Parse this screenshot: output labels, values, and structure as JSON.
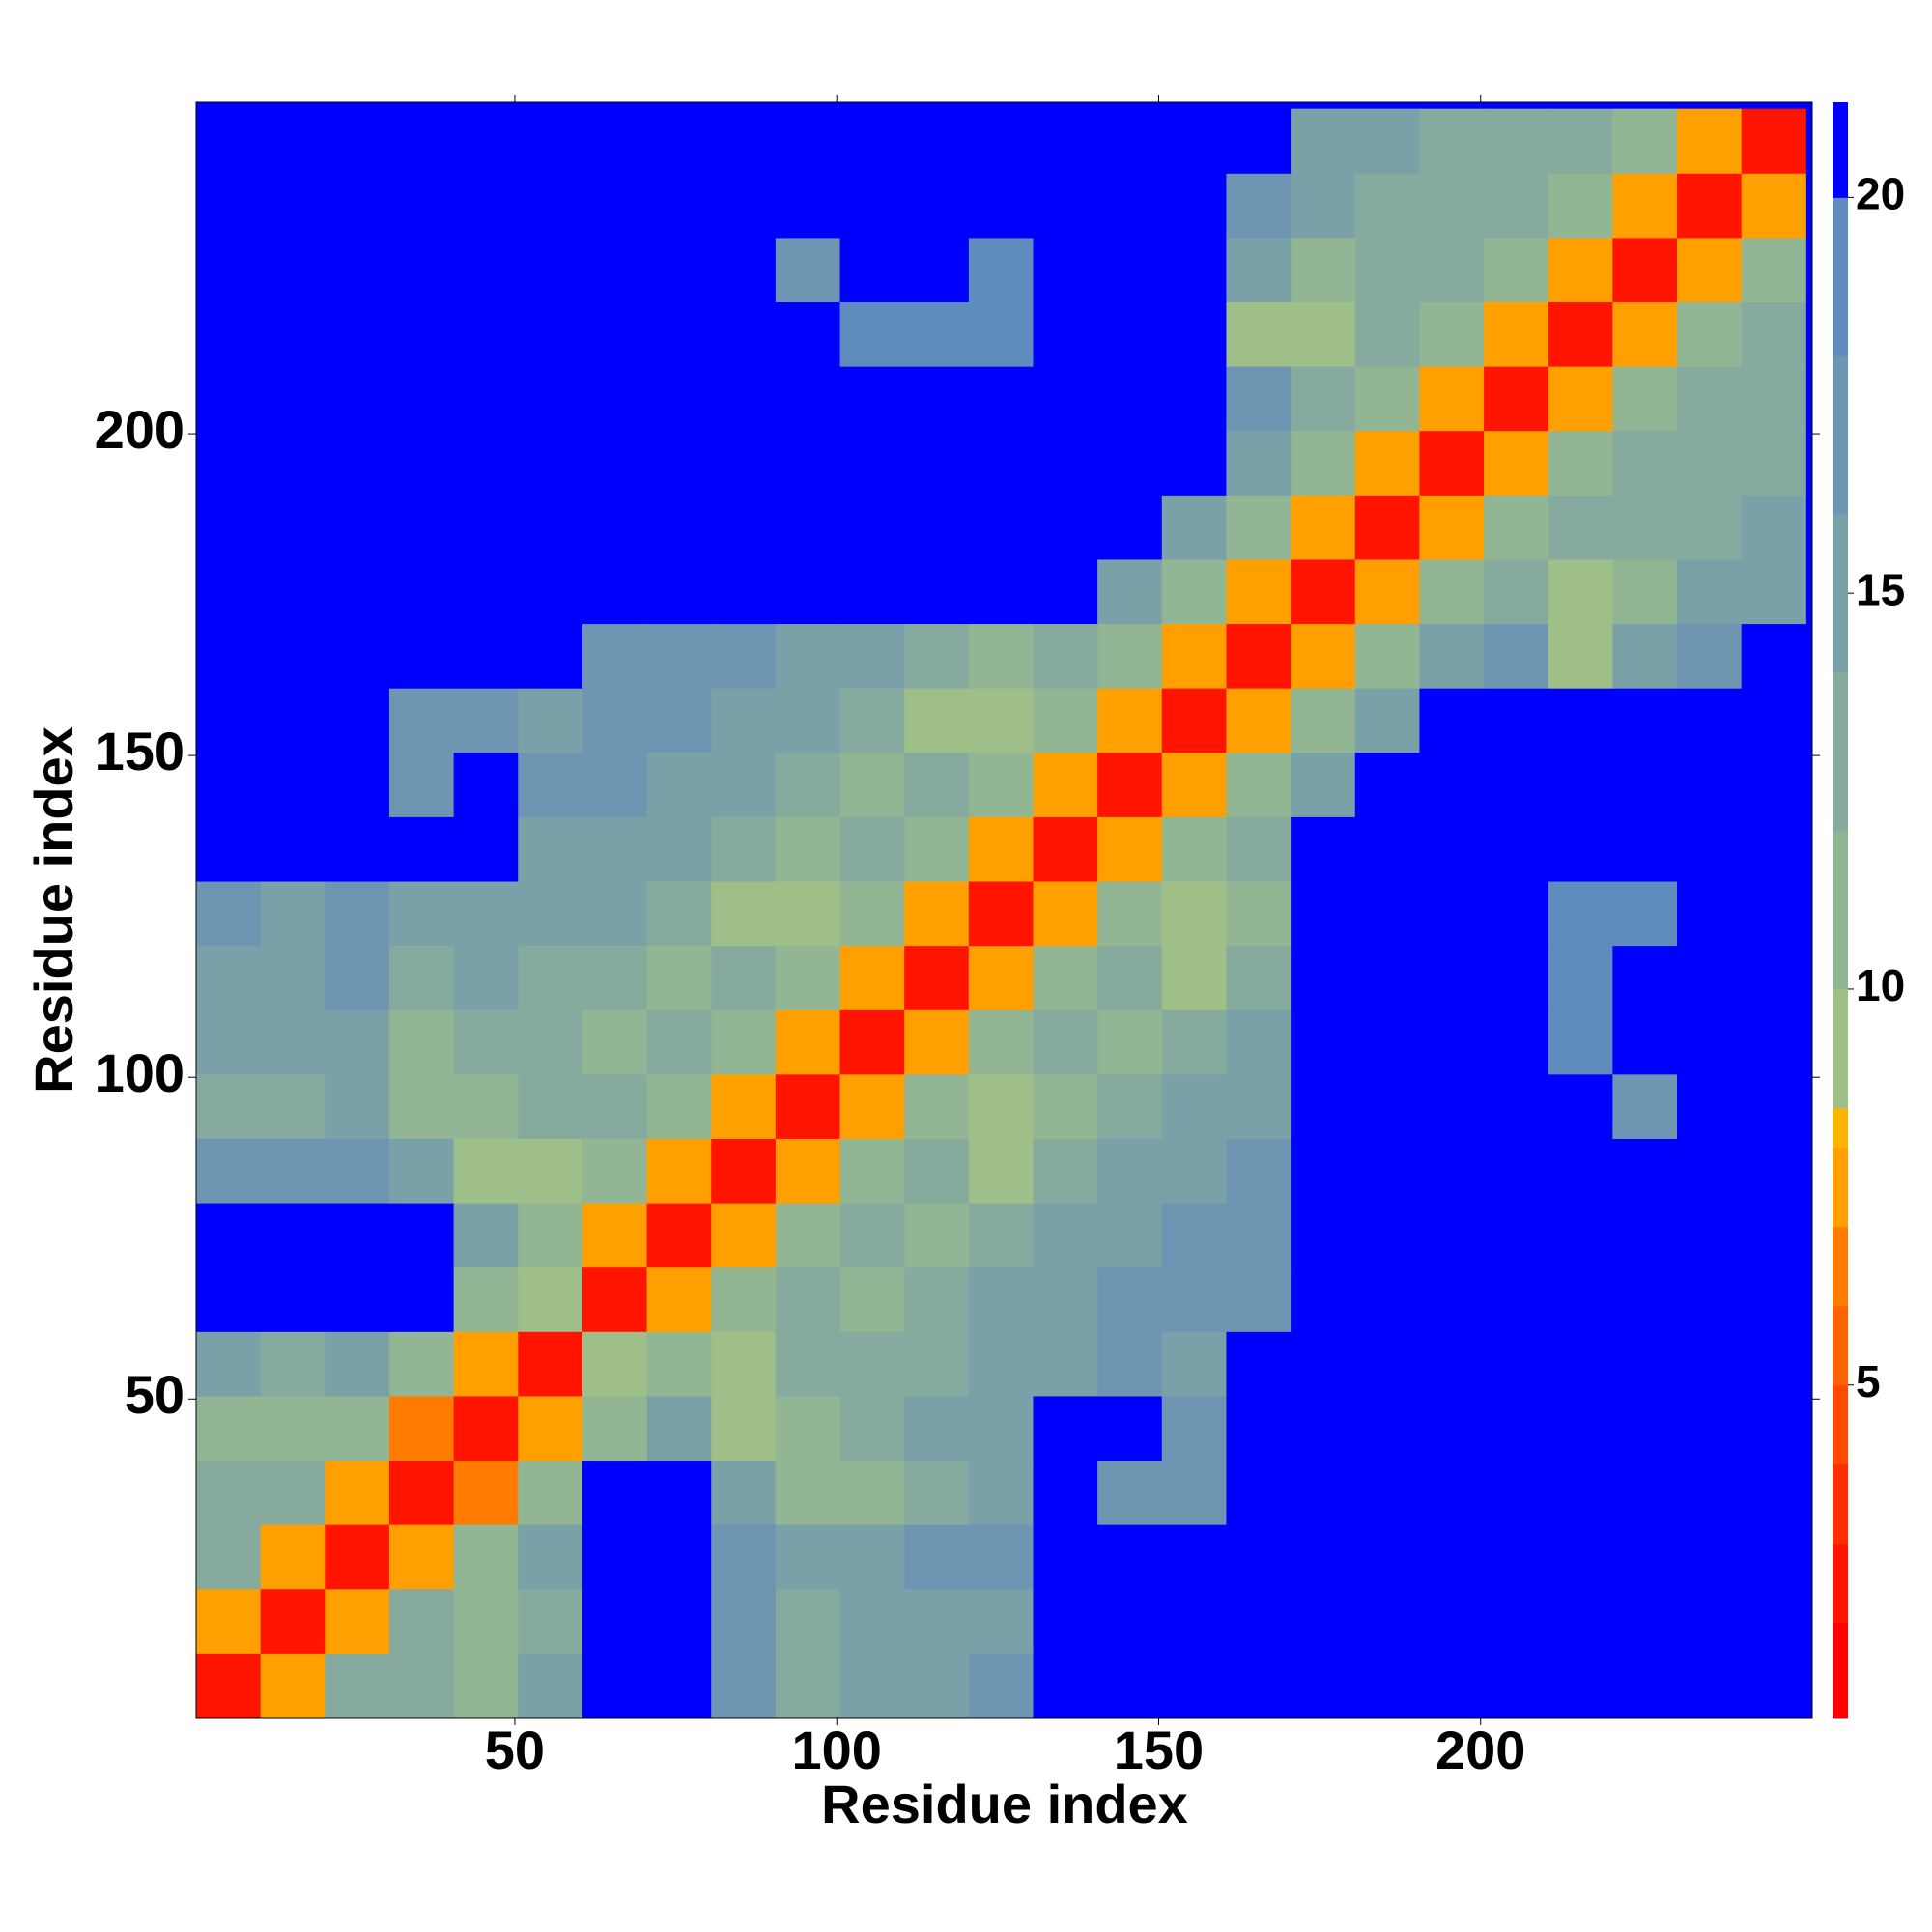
{
  "chart_data": {
    "type": "heatmap",
    "xlabel": "Residue index",
    "ylabel": "Residue index",
    "x": [
      5.5,
      15.5,
      25.5,
      35.5,
      45.5,
      55.5,
      65.5,
      75.5,
      85.5,
      95.5,
      105.5,
      115.5,
      125.5,
      135.5,
      145.5,
      155.5,
      165.5,
      175.5,
      185.5,
      195.5,
      205.5,
      215.5,
      225.5,
      235.5,
      245.5
    ],
    "y": [
      5.5,
      15.5,
      25.5,
      35.5,
      45.5,
      55.5,
      65.5,
      75.5,
      85.5,
      95.5,
      105.5,
      115.5,
      125.5,
      135.5,
      145.5,
      155.5,
      165.5,
      175.5,
      185.5,
      195.5,
      205.5,
      215.5,
      225.5,
      235.5,
      245.5
    ],
    "values": [
      [
        3,
        8,
        13,
        14,
        12,
        15,
        21,
        21,
        17,
        14,
        15,
        16,
        18,
        21,
        21,
        21,
        21,
        21,
        21,
        21,
        21,
        21,
        21,
        21,
        21
      ],
      [
        8,
        3,
        8,
        13,
        12,
        14,
        21,
        21,
        17,
        14,
        15,
        16,
        16,
        21,
        21,
        21,
        21,
        21,
        21,
        21,
        21,
        21,
        21,
        21,
        21
      ],
      [
        13,
        8,
        3,
        8,
        11,
        15,
        21,
        21,
        18,
        15,
        16,
        18,
        17,
        21,
        21,
        21,
        21,
        21,
        21,
        21,
        21,
        21,
        21,
        21,
        21
      ],
      [
        14,
        13,
        8,
        3,
        7,
        12,
        21,
        21,
        15,
        12,
        12,
        13,
        15,
        21,
        18,
        18,
        21,
        21,
        21,
        21,
        21,
        21,
        21,
        21,
        21
      ],
      [
        12,
        12,
        11,
        7,
        3,
        8,
        12,
        16,
        10,
        12,
        14,
        15,
        16,
        21,
        21,
        17,
        21,
        21,
        21,
        21,
        21,
        21,
        21,
        21,
        21
      ],
      [
        15,
        14,
        15,
        12,
        8,
        3,
        9,
        12,
        9,
        13,
        13,
        14,
        15,
        16,
        17,
        16,
        21,
        21,
        21,
        21,
        21,
        21,
        21,
        21,
        21
      ],
      [
        21,
        21,
        21,
        21,
        12,
        9,
        3,
        8,
        11,
        13,
        12,
        14,
        15,
        16,
        17,
        18,
        18,
        21,
        21,
        21,
        21,
        21,
        21,
        21,
        21
      ],
      [
        21,
        21,
        21,
        21,
        16,
        12,
        8,
        3,
        8,
        11,
        13,
        12,
        14,
        15,
        16,
        17,
        18,
        21,
        21,
        21,
        21,
        21,
        21,
        21,
        21
      ],
      [
        17,
        17,
        18,
        15,
        10,
        9,
        11,
        8,
        3,
        8,
        11,
        13,
        9,
        14,
        15,
        16,
        17,
        21,
        21,
        21,
        21,
        21,
        21,
        21,
        21
      ],
      [
        14,
        14,
        15,
        12,
        12,
        13,
        13,
        11,
        8,
        3,
        8,
        11,
        10,
        12,
        14,
        15,
        16,
        21,
        21,
        21,
        21,
        21,
        17,
        21,
        21
      ],
      [
        15,
        15,
        16,
        12,
        14,
        13,
        12,
        13,
        11,
        8,
        3,
        8,
        11,
        13,
        12,
        14,
        15,
        21,
        21,
        21,
        21,
        19,
        21,
        21,
        21
      ],
      [
        16,
        16,
        18,
        13,
        15,
        14,
        14,
        12,
        13,
        11,
        8,
        3,
        8,
        11,
        13,
        9,
        14,
        21,
        21,
        21,
        21,
        19,
        21,
        21,
        21
      ],
      [
        18,
        16,
        17,
        15,
        16,
        15,
        15,
        14,
        9,
        10,
        11,
        8,
        3,
        8,
        11,
        10,
        12,
        21,
        21,
        21,
        21,
        19,
        20,
        21,
        21
      ],
      [
        21,
        21,
        21,
        21,
        21,
        16,
        16,
        15,
        14,
        12,
        13,
        11,
        8,
        3,
        8,
        11,
        13,
        21,
        21,
        21,
        21,
        21,
        21,
        21,
        21
      ],
      [
        21,
        21,
        21,
        18,
        21,
        17,
        17,
        16,
        15,
        14,
        12,
        13,
        11,
        8,
        3,
        8,
        11,
        15,
        21,
        21,
        21,
        21,
        21,
        21,
        21
      ],
      [
        21,
        21,
        21,
        18,
        17,
        16,
        18,
        17,
        16,
        15,
        14,
        9,
        10,
        11,
        8,
        3,
        8,
        12,
        16,
        21,
        21,
        21,
        21,
        21,
        21
      ],
      [
        21,
        21,
        21,
        21,
        21,
        21,
        18,
        18,
        17,
        16,
        15,
        14,
        12,
        13,
        11,
        8,
        3,
        8,
        12,
        15,
        18,
        10,
        16,
        18,
        21
      ],
      [
        21,
        21,
        21,
        21,
        21,
        21,
        21,
        21,
        21,
        21,
        21,
        21,
        21,
        21,
        15,
        12,
        8,
        3,
        8,
        11,
        13,
        10,
        12,
        15,
        16
      ],
      [
        21,
        21,
        21,
        21,
        21,
        21,
        21,
        21,
        21,
        21,
        21,
        21,
        21,
        21,
        21,
        16,
        12,
        8,
        3,
        8,
        11,
        13,
        13,
        14,
        15
      ],
      [
        21,
        21,
        21,
        21,
        21,
        21,
        21,
        21,
        21,
        21,
        21,
        21,
        21,
        21,
        21,
        21,
        15,
        11,
        8,
        3,
        8,
        11,
        13,
        13,
        14
      ],
      [
        21,
        21,
        21,
        21,
        21,
        21,
        21,
        21,
        21,
        21,
        21,
        21,
        21,
        21,
        21,
        21,
        18,
        13,
        11,
        8,
        3,
        8,
        11,
        13,
        13
      ],
      [
        21,
        21,
        21,
        21,
        21,
        21,
        21,
        21,
        21,
        21,
        19,
        19,
        19,
        21,
        21,
        21,
        10,
        10,
        13,
        11,
        8,
        3,
        8,
        11,
        13
      ],
      [
        21,
        21,
        21,
        21,
        21,
        21,
        21,
        21,
        21,
        17,
        21,
        21,
        20,
        21,
        21,
        21,
        16,
        12,
        13,
        13,
        11,
        8,
        3,
        8,
        11
      ],
      [
        21,
        21,
        21,
        21,
        21,
        21,
        21,
        21,
        21,
        21,
        21,
        21,
        21,
        21,
        21,
        21,
        18,
        15,
        14,
        13,
        13,
        11,
        8,
        3,
        8
      ],
      [
        21,
        21,
        21,
        21,
        21,
        21,
        21,
        21,
        21,
        21,
        21,
        21,
        21,
        21,
        21,
        21,
        21,
        16,
        15,
        14,
        13,
        13,
        11,
        8,
        3
      ]
    ],
    "xlim": [
      0.5,
      251.5
    ],
    "ylim": [
      0.5,
      251.5
    ],
    "xticks": [
      50,
      100,
      150,
      200
    ],
    "yticks": [
      50,
      100,
      150,
      200
    ],
    "colorbar": {
      "clim": [
        0.8,
        21.2
      ],
      "ticks": [
        5,
        10,
        15,
        20
      ],
      "levels": [
        0.8,
        2,
        3,
        4,
        5,
        6,
        7,
        8,
        8.5,
        10,
        12,
        14,
        16,
        18,
        20,
        21.2
      ],
      "colors": [
        "#ff0000",
        "#ff1400",
        "#ff2e00",
        "#ff4800",
        "#ff6200",
        "#ff7c00",
        "#ffa000",
        "#ffb400",
        "#9fbf88",
        "#92b594",
        "#86ab9e",
        "#7ba1a8",
        "#6e96b2",
        "#5f8bbd",
        "#0000ff"
      ]
    }
  }
}
